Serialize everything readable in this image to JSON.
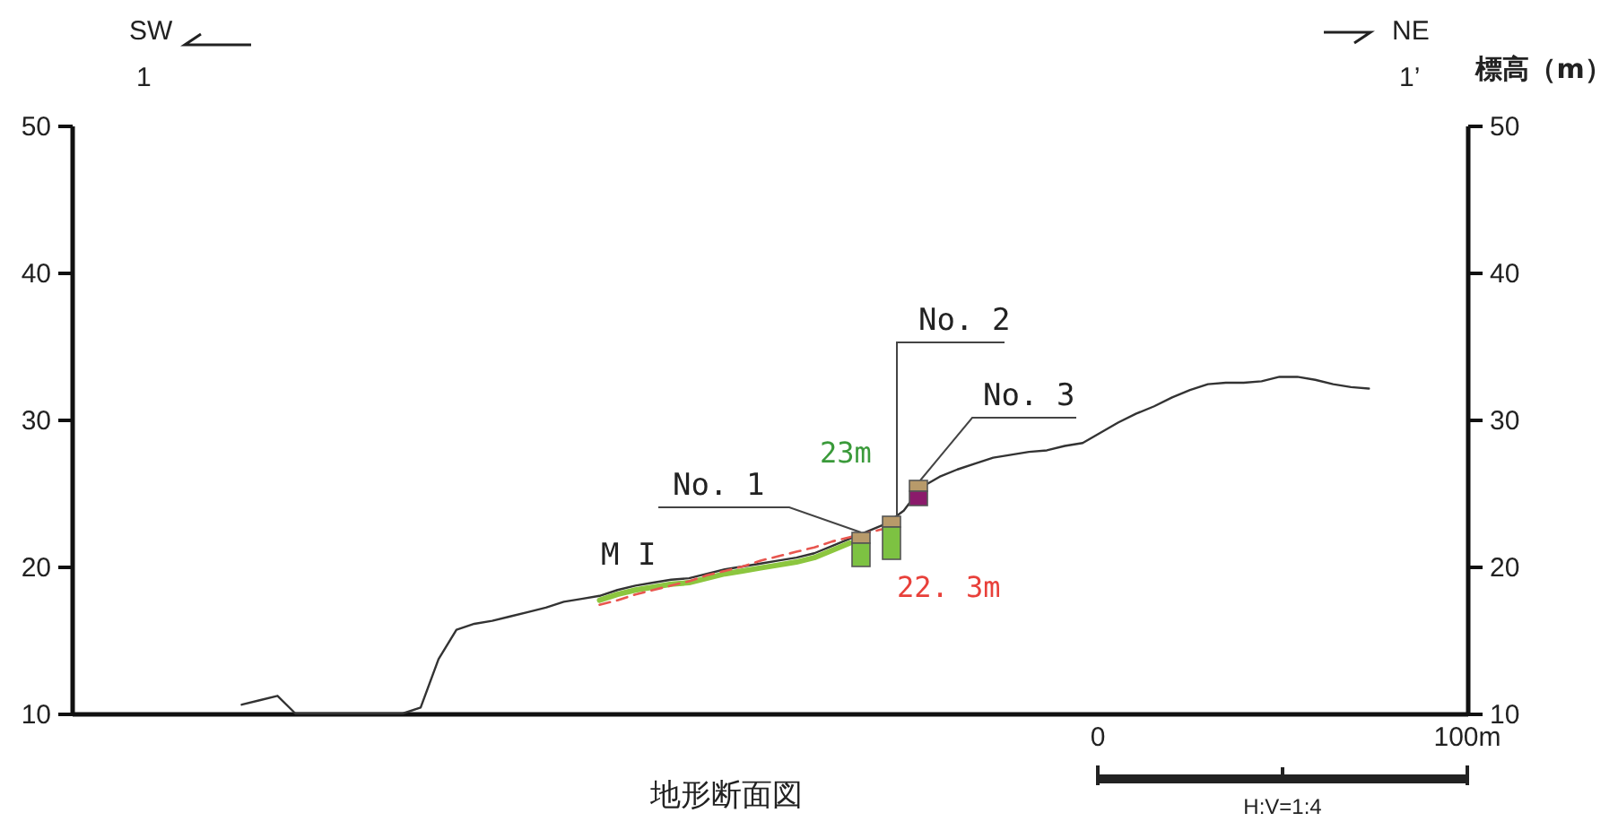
{
  "chart_data": {
    "type": "line",
    "title": "地形断面図",
    "y2label": "標高（m）",
    "categories": [
      null,
      null,
      null,
      null,
      null,
      null,
      null,
      null,
      null,
      null,
      null,
      null,
      null,
      null,
      null,
      null,
      null,
      null,
      null,
      null,
      null,
      null,
      null,
      null,
      null,
      null,
      null,
      null,
      null,
      null,
      null,
      null,
      null,
      null,
      null,
      null,
      null,
      null,
      null,
      null,
      null,
      null,
      null,
      null,
      null,
      null,
      null,
      null,
      null,
      null,
      null,
      null,
      null,
      null,
      null,
      null,
      null,
      null,
      null,
      null,
      null,
      null,
      null,
      null,
      null,
      null,
      null,
      null,
      null,
      null,
      null,
      null,
      null,
      null,
      null,
      null,
      null,
      null
    ],
    "ylim": [
      10,
      50
    ],
    "yticks": [
      10,
      20,
      30,
      40,
      50
    ],
    "y2lim": [
      10,
      50
    ],
    "y2ticks": [
      10,
      20,
      30,
      40,
      50
    ],
    "series": [
      {
        "color": "#333333",
        "values": [
          null,
          null,
          null,
          null,
          null,
          null,
          null,
          null,
          null,
          10.6,
          10.9,
          11.2,
          10.0,
          10.0,
          10.0,
          10.0,
          10.0,
          10.0,
          10.0,
          10.4,
          13.7,
          15.7,
          16.1,
          16.3,
          16.6,
          16.9,
          17.2,
          17.6,
          17.8,
          18.0,
          18.4,
          18.7,
          18.9,
          19.1,
          19.2,
          19.5,
          19.8,
          20.0,
          20.2,
          20.4,
          20.6,
          20.9,
          21.4,
          21.9,
          22.4,
          22.9,
          23.8,
          25.4,
          26.1,
          26.6,
          27.0,
          27.4,
          27.6,
          27.8,
          27.9,
          28.2,
          28.4,
          29.1,
          29.8,
          30.4,
          30.9,
          31.5,
          32.0,
          32.4,
          32.5,
          32.5,
          32.6,
          32.9,
          32.9,
          32.7,
          32.4,
          32.2,
          32.1,
          null,
          null,
          null,
          null,
          null
        ]
      },
      {
        "color": "#8cc63f",
        "values": [
          null,
          null,
          null,
          null,
          null,
          null,
          null,
          null,
          null,
          null,
          null,
          null,
          null,
          null,
          null,
          null,
          null,
          null,
          null,
          null,
          null,
          null,
          null,
          null,
          null,
          null,
          null,
          null,
          null,
          17.7,
          18.1,
          18.4,
          18.6,
          18.8,
          18.9,
          19.2,
          19.5,
          19.7,
          19.9,
          20.1,
          20.3,
          20.6,
          21.1,
          21.6,
          null,
          null,
          null,
          null,
          null,
          null,
          null,
          null,
          null,
          null,
          null,
          null,
          null,
          null,
          null,
          null,
          null,
          null,
          null,
          null,
          null,
          null,
          null,
          null,
          null,
          null,
          null,
          null,
          null,
          null,
          null,
          null,
          null,
          null
        ]
      },
      {
        "color": "#e8564f",
        "line_style": "dashed",
        "values": [
          null,
          null,
          null,
          null,
          null,
          null,
          null,
          null,
          null,
          null,
          null,
          null,
          null,
          null,
          null,
          null,
          null,
          null,
          null,
          null,
          null,
          null,
          null,
          null,
          null,
          null,
          null,
          null,
          null,
          17.4,
          17.7,
          18.1,
          18.4,
          18.7,
          19.0,
          19.4,
          19.7,
          20.0,
          20.4,
          20.7,
          21.0,
          21.3,
          21.7,
          22.0,
          22.3,
          22.6,
          null,
          null,
          null,
          null,
          null,
          null,
          null,
          null,
          null,
          null,
          null,
          null,
          null,
          null,
          null,
          null,
          null,
          null,
          null,
          null,
          null,
          null,
          null,
          null,
          null,
          null,
          null,
          null,
          null,
          null,
          null,
          null
        ]
      }
    ],
    "annotations": [
      "SW",
      "1",
      "NE",
      "1’",
      "No. 1",
      "No. 2",
      "No. 3",
      "23m",
      "22. 3m",
      "M I",
      "0",
      "100m",
      "H:V=1:4"
    ]
  }
}
